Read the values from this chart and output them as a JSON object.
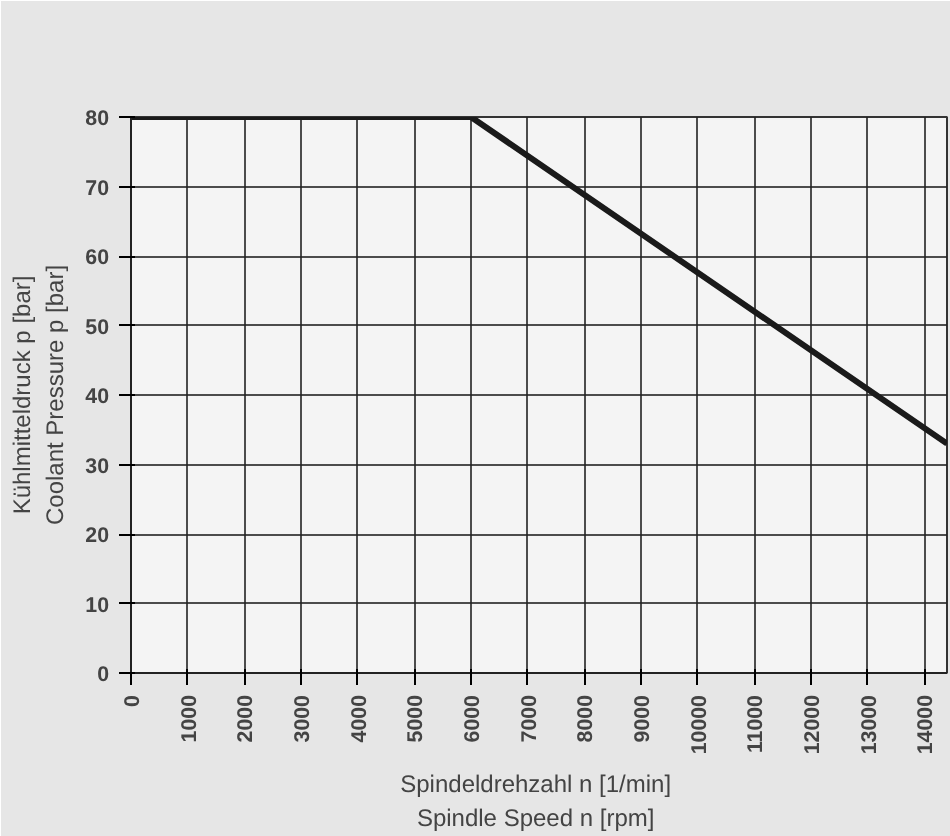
{
  "chart_data": {
    "type": "line",
    "xlabel": "Spindeldrehzahl  n [1/min]\nSpindle Speed  n [rpm]",
    "ylabel": "Kühlmitteldruck p [bar]\nCoolant Pressure p [bar]",
    "x": [
      0,
      6000,
      14400
    ],
    "series": [
      {
        "color": "#1a1a1a",
        "values": [
          80,
          80,
          33
        ]
      }
    ],
    "xlim": [
      0,
      14400
    ],
    "ylim": [
      0,
      80
    ],
    "xticks": [
      0,
      1000,
      2000,
      3000,
      4000,
      5000,
      6000,
      7000,
      8000,
      9000,
      10000,
      11000,
      12000,
      13000,
      14000
    ],
    "yticks": [
      0,
      10,
      20,
      30,
      40,
      50,
      60,
      70,
      80
    ],
    "grid": true,
    "line_style": "solid",
    "marker": "none"
  }
}
